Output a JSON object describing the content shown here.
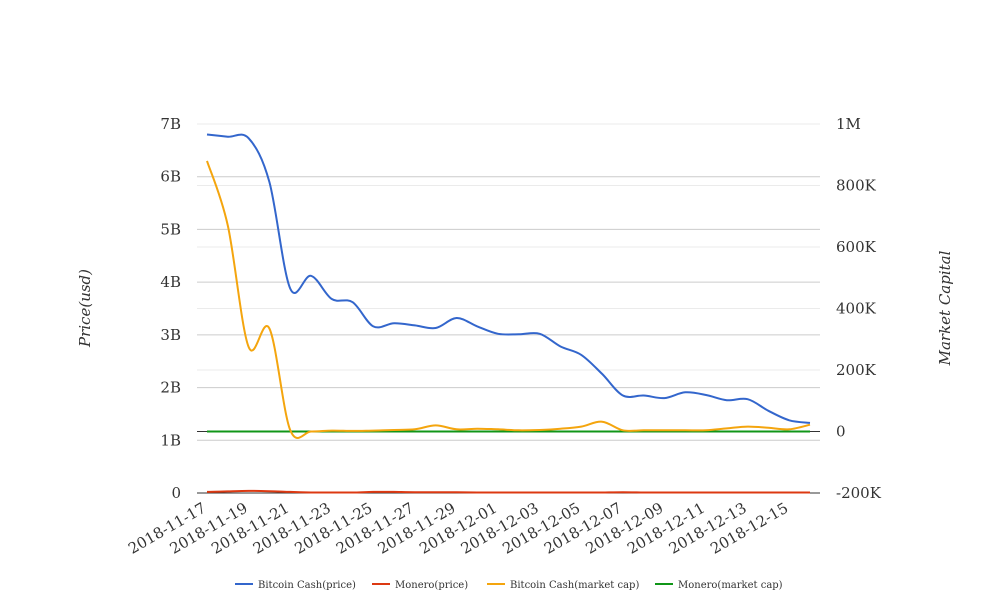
{
  "chart_data": {
    "type": "line",
    "ylabel_left": "Price(usd)",
    "ylabel_right": "Market Capital",
    "left_ticks": [
      "0",
      "1B",
      "2B",
      "3B",
      "4B",
      "5B",
      "6B",
      "7B"
    ],
    "right_ticks": [
      "-200K",
      "0",
      "200K",
      "400K",
      "600K",
      "800K",
      "1M"
    ],
    "left_ylim": [
      0,
      7000000000
    ],
    "right_ylim": [
      -200000,
      1000000
    ],
    "x_tick_labels": [
      "2018-11-17",
      "2018-11-19",
      "2018-11-21",
      "2018-11-23",
      "2018-11-25",
      "2018-11-27",
      "2018-11-29",
      "2018-12-01",
      "2018-12-03",
      "2018-12-05",
      "2018-12-07",
      "2018-12-09",
      "2018-12-11",
      "2018-12-13",
      "2018-12-15"
    ],
    "x": [
      "2018-11-17",
      "2018-11-18",
      "2018-11-19",
      "2018-11-20",
      "2018-11-21",
      "2018-11-22",
      "2018-11-23",
      "2018-11-24",
      "2018-11-25",
      "2018-11-26",
      "2018-11-27",
      "2018-11-28",
      "2018-11-29",
      "2018-11-30",
      "2018-12-01",
      "2018-12-02",
      "2018-12-03",
      "2018-12-04",
      "2018-12-05",
      "2018-12-06",
      "2018-12-07",
      "2018-12-08",
      "2018-12-09",
      "2018-12-10",
      "2018-12-11",
      "2018-12-12",
      "2018-12-13",
      "2018-12-14",
      "2018-12-15",
      "2018-12-16"
    ],
    "series": [
      {
        "name": "Bitcoin Cash(price)",
        "axis": "left",
        "color": "#3366cc",
        "values": [
          6800000000,
          6760000000,
          6730000000,
          5900000000,
          3880000000,
          4120000000,
          3680000000,
          3620000000,
          3160000000,
          3220000000,
          3180000000,
          3130000000,
          3320000000,
          3160000000,
          3020000000,
          3010000000,
          3020000000,
          2780000000,
          2620000000,
          2260000000,
          1850000000,
          1850000000,
          1800000000,
          1910000000,
          1860000000,
          1760000000,
          1780000000,
          1560000000,
          1380000000,
          1330000000
        ]
      },
      {
        "name": "Monero(price)",
        "axis": "left",
        "color": "#dc3912",
        "values": [
          20000000,
          30000000,
          40000000,
          35000000,
          20000000,
          10000000,
          10000000,
          10000000,
          20000000,
          20000000,
          15000000,
          15000000,
          15000000,
          10000000,
          10000000,
          10000000,
          10000000,
          10000000,
          10000000,
          10000000,
          15000000,
          10000000,
          10000000,
          10000000,
          10000000,
          10000000,
          10000000,
          10000000,
          10000000,
          10000000
        ]
      },
      {
        "name": "Bitcoin Cash(market cap)",
        "axis": "right",
        "color": "#f4a50e",
        "values": [
          880000,
          670000,
          275000,
          335000,
          5000,
          0,
          3000,
          2000,
          3000,
          5000,
          7000,
          20000,
          7000,
          9000,
          7000,
          4000,
          5000,
          9000,
          16000,
          32000,
          4000,
          4000,
          4000,
          4000,
          4000,
          10000,
          16000,
          12000,
          7000,
          22000
        ]
      },
      {
        "name": "Monero(market cap)",
        "axis": "right",
        "color": "#109618",
        "values": [
          0,
          0,
          0,
          0,
          0,
          0,
          0,
          0,
          0,
          0,
          0,
          0,
          0,
          0,
          0,
          0,
          0,
          0,
          0,
          0,
          0,
          0,
          0,
          0,
          0,
          0,
          0,
          0,
          0,
          0
        ]
      }
    ],
    "legend_position": "bottom",
    "grid": true
  }
}
